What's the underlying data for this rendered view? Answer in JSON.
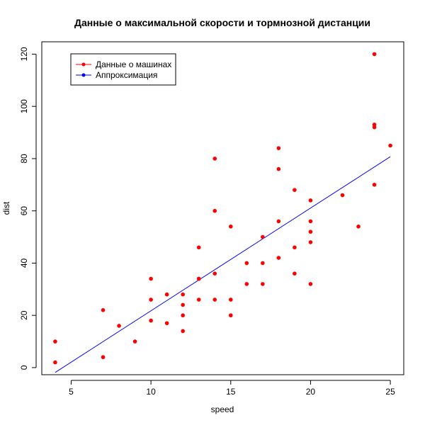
{
  "chart_data": {
    "type": "scatter",
    "title": "Данные о максимальной скорости и тормнозной дистанции",
    "xlabel": "speed",
    "ylabel": "dist",
    "xlim": [
      3.16,
      25.84
    ],
    "ylim": [
      -2.72,
      124.72
    ],
    "xticks": [
      5,
      10,
      15,
      20,
      25
    ],
    "yticks": [
      0,
      20,
      40,
      60,
      80,
      100,
      120
    ],
    "grid": false,
    "legend": {
      "position": "top-left",
      "entries": [
        {
          "label": "Данные о машинах",
          "color": "#ff0000"
        },
        {
          "label": "Аппроксимация",
          "color": "#0000ff"
        }
      ]
    },
    "series": [
      {
        "kind": "points",
        "color": "#ff0000",
        "x": [
          4,
          4,
          7,
          7,
          8,
          9,
          10,
          10,
          10,
          11,
          11,
          12,
          12,
          12,
          12,
          13,
          13,
          13,
          13,
          14,
          14,
          14,
          14,
          15,
          15,
          15,
          16,
          16,
          17,
          17,
          17,
          18,
          18,
          18,
          18,
          19,
          19,
          19,
          20,
          20,
          20,
          20,
          20,
          22,
          23,
          24,
          24,
          24,
          24,
          25
        ],
        "y": [
          2,
          10,
          4,
          22,
          16,
          10,
          18,
          26,
          34,
          17,
          28,
          14,
          20,
          24,
          28,
          26,
          34,
          34,
          46,
          26,
          36,
          60,
          80,
          20,
          26,
          54,
          32,
          40,
          32,
          40,
          50,
          42,
          56,
          76,
          84,
          36,
          46,
          68,
          32,
          48,
          52,
          56,
          64,
          66,
          54,
          70,
          92,
          93,
          120,
          85
        ]
      },
      {
        "kind": "line",
        "color": "#0000ff",
        "x": [
          4,
          25
        ],
        "y": [
          -1.849,
          80.731
        ]
      }
    ]
  }
}
